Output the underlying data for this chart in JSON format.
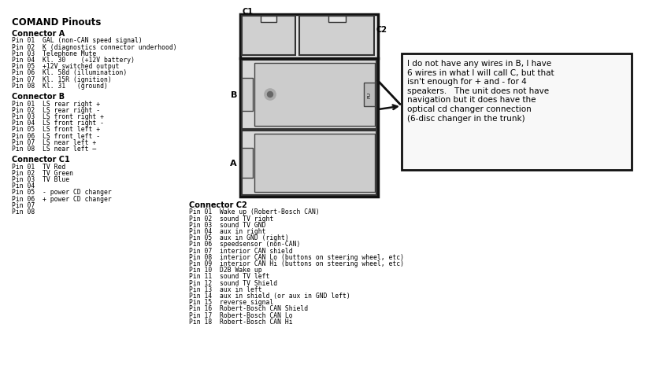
{
  "title": "COMAND Pinouts",
  "bg_color": "#ffffff",
  "connector_a_header": "Connector A",
  "connector_a_pins": [
    "Pin 01  GAL (non-CAN speed signal)",
    "Pin 02  K (diagnostics connector underhood)",
    "Pin 03  Telephone Mute",
    "Pin 04  Kl. 30    (+12V battery)",
    "Pin 05  +12V switched output",
    "Pin 06  Kl. 58d (illumination)",
    "Pin 07  Kl. 15R (ignition)",
    "Pin 08  Kl. 31   (ground)"
  ],
  "connector_b_header": "Connector B",
  "connector_b_pins": [
    "Pin 01  LS rear right +",
    "Pin 02  LS rear right -",
    "Pin 03  LS front right +",
    "Pin 04  LS front right -",
    "Pin 05  LS front left +",
    "Pin 06  LS front left -",
    "Pin 07  LS near left +",
    "Pin 08  LS near left –"
  ],
  "connector_c1_header": "Connector C1",
  "connector_c1_pins": [
    "Pin 01  TV Red",
    "Pin 02  TV Green",
    "Pin 03  TV Blue",
    "Pin 04",
    "Pin 05  - power CD changer",
    "Pin 06  + power CD changer",
    "Pin 07",
    "Pin 08"
  ],
  "connector_c2_header": "Connector C2",
  "connector_c2_pins": [
    "Pin 01  Wake up (Robert-Bosch CAN)",
    "Pin 02  sound TV right",
    "Pin 03  sound TV GND",
    "Pin 04  aux in right",
    "Pin 05  aux in GND (right)",
    "Pin 06  speedsensor (non-CAN)",
    "Pin 07  interior CAN shield",
    "Pin 08  interior CAN Lo (buttons on steering wheel, etc)",
    "Pin 09  interior CAN Hi (buttons on steering wheel, etc)",
    "Pin 10  D2B Wake up",
    "Pin 11  sound TV left",
    "Pin 12  sound TV Shield",
    "Pin 13  aux in left",
    "Pin 14  aux in shield (or aux in GND left)",
    "Pin 15  reverse signal",
    "Pin 16  Robert-Bosch CAN Shield",
    "Pin 17  Robert-Bosch CAN Lo",
    "Pin 18  Robert-Bosch CAN Hi"
  ],
  "note_text": "I do not have any wires in B, I have\n6 wires in what I will call C, but that\nisn't enough for + and - for 4\nspeakers.   The unit does not have\nnavigation but it does have the\noptical cd changer connection\n(6-disc changer in the trunk)",
  "label_C1": "C1",
  "label_C2": "C2",
  "label_B": "B",
  "label_A": "A",
  "label_FU": "FU"
}
